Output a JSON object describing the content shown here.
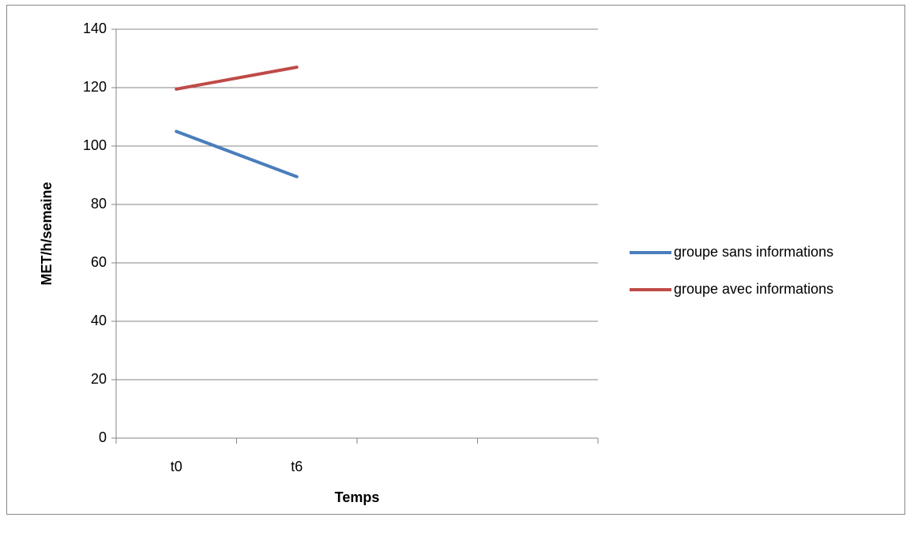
{
  "chart_data": {
    "type": "line",
    "x_label": "Temps",
    "y_label": "MET/h/semaine",
    "categories": [
      "t0",
      "t6",
      null,
      null
    ],
    "series": [
      {
        "name": "groupe sans informations",
        "color": "#4a7ebb",
        "values": [
          105,
          89.5,
          null,
          null
        ]
      },
      {
        "name": "groupe avec informations",
        "color": "#be4b48",
        "values": [
          119.5,
          127,
          null,
          null
        ]
      }
    ],
    "ylim": [
      0,
      140
    ],
    "yticks": [
      0,
      20,
      40,
      60,
      80,
      100,
      120,
      140
    ],
    "grid": true,
    "legend": "right"
  }
}
